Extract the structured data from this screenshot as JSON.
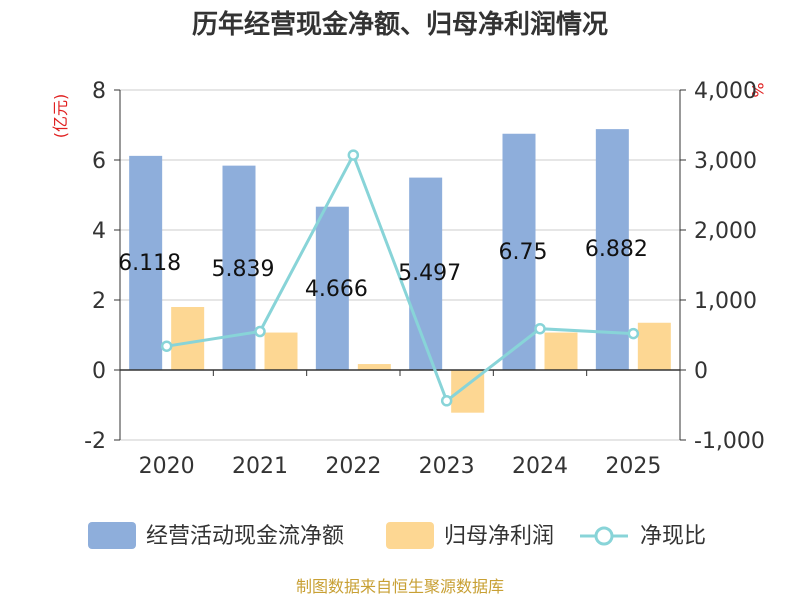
{
  "chart_data": {
    "type": "bar",
    "title": "历年经营现金净额、归母净利润情况",
    "categories": [
      "2020",
      "2021",
      "2022",
      "2023",
      "2024",
      "2025"
    ],
    "series": [
      {
        "name": "经营活动现金流净额",
        "type": "bar",
        "axis": "left",
        "color": "#8eaedb",
        "values": [
          6.118,
          5.839,
          4.666,
          5.497,
          6.75,
          6.882
        ]
      },
      {
        "name": "归母净利润",
        "type": "bar",
        "axis": "left",
        "color": "#fdd793",
        "values": [
          1.8,
          1.07,
          0.17,
          -1.22,
          1.07,
          1.35
        ]
      },
      {
        "name": "净现比",
        "type": "line",
        "axis": "right",
        "color": "#88d4d8",
        "values": [
          340,
          550,
          3070,
          -440,
          590,
          520
        ]
      }
    ],
    "data_labels": [
      "6.118",
      "5.839",
      "4.666",
      "5.497",
      "6.75",
      "6.882"
    ],
    "y_left": {
      "unit": "(亿元)",
      "ylim": [
        -2,
        8
      ],
      "ticks": [
        8,
        6,
        4,
        2,
        0,
        -2
      ],
      "tick_labels": [
        "8",
        "6",
        "4",
        "2",
        "0",
        "-2"
      ]
    },
    "y_right": {
      "unit": "%",
      "ylim": [
        -1000,
        4000
      ],
      "ticks": [
        4000,
        3000,
        2000,
        1000,
        0,
        -1000
      ],
      "tick_labels": [
        "4,000",
        "3,000",
        "2,000",
        "1,000",
        "0",
        "-1,000"
      ]
    },
    "grid": true,
    "legend_position": "bottom"
  },
  "source": "制图数据来自恒生聚源数据库",
  "colors": {
    "left_unit": "#e02020",
    "right_unit": "#e02020",
    "source": "#c8a034",
    "grid": "#cccccc",
    "axis": "#333333"
  }
}
